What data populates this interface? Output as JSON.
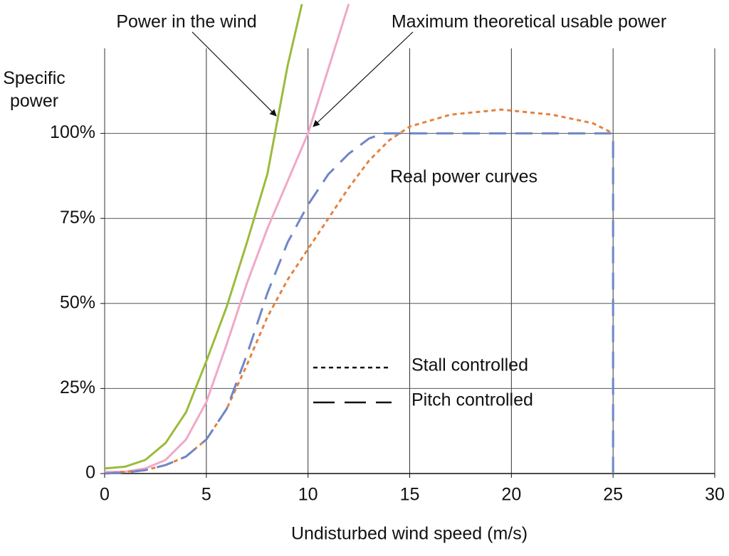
{
  "chart_data": {
    "type": "line",
    "xlabel": "Undisturbed wind speed (m/s)",
    "ylabel": "Specific power",
    "annotation": "Real power curves",
    "xlim": [
      0,
      30
    ],
    "xticks": [
      0,
      5,
      10,
      15,
      20,
      25,
      30
    ],
    "ylim": [
      0,
      125
    ],
    "yticks": [
      0,
      {
        "value": 25,
        "label": "25%"
      },
      {
        "value": 50,
        "label": "50%"
      },
      {
        "value": 75,
        "label": "75%"
      },
      {
        "value": 100,
        "label": "100%"
      }
    ],
    "grid": true,
    "series": [
      {
        "name": "Power in the wind",
        "color": "#9bbb3b",
        "style": "solid",
        "x": [
          0,
          1,
          2,
          3,
          4,
          5,
          6,
          7,
          8,
          9,
          9.7
        ],
        "values": [
          1.5,
          2,
          4,
          9,
          18,
          33,
          49,
          68,
          88,
          120,
          138
        ]
      },
      {
        "name": "Maximum theoretical usable power",
        "color": "#f0a8c8",
        "style": "solid",
        "x": [
          0,
          1,
          2,
          3,
          4,
          5,
          6,
          7,
          8,
          9,
          10,
          11,
          12
        ],
        "values": [
          0.5,
          0.5,
          1.5,
          4,
          10,
          21,
          38,
          56,
          72,
          86,
          100,
          119,
          138
        ]
      },
      {
        "name": "Stall controlled",
        "color": "#e5823f",
        "style": "dotted",
        "x": [
          0,
          2,
          3,
          4,
          5,
          6,
          7,
          8,
          9,
          10,
          11,
          12,
          13,
          14,
          15,
          17,
          19.5,
          22,
          24,
          25
        ],
        "values": [
          0,
          1,
          2.5,
          5,
          10,
          19,
          32,
          46,
          57,
          66,
          75,
          84,
          92,
          98,
          102,
          105.5,
          107,
          105.5,
          103,
          100
        ]
      },
      {
        "name": "Pitch controlled",
        "color": "#6f86c8",
        "style": "dashed",
        "x": [
          0,
          1,
          2,
          3,
          4,
          5,
          6,
          7,
          8,
          9,
          10,
          11,
          12,
          13,
          13.7,
          25,
          25
        ],
        "values": [
          0,
          0.3,
          1,
          2.5,
          5,
          10,
          19,
          35,
          53,
          68,
          79,
          88,
          94,
          98.5,
          100,
          100,
          0
        ]
      }
    ]
  }
}
